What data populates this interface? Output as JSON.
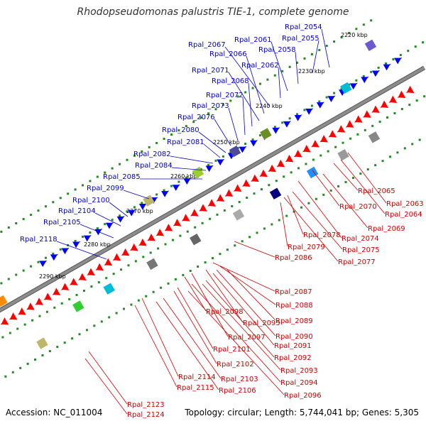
{
  "title": "Rhodopseudomonas palustris TIE-1, complete genome",
  "footer": {
    "accession": "Accession: NC_011004",
    "summary": "Topology: circular; Length: 5,744,041 bp; Genes: 5,305"
  },
  "colors": {
    "backbone": "#8c8c8c",
    "forward_label": "#0000cc",
    "reverse_label": "#cc0000",
    "forward_gene": "#0000ff",
    "reverse_gene": "#ff0000",
    "gc_dots": "#228b22"
  },
  "ticks": [
    {
      "label": "2220 kbp"
    },
    {
      "label": "2230 kbp"
    },
    {
      "label": "2240 kbp"
    },
    {
      "label": "2250 kbp"
    },
    {
      "label": "2260 kbp"
    },
    {
      "label": "2270 kbp"
    },
    {
      "label": "2280 kbp"
    },
    {
      "label": "2290 kbp"
    }
  ],
  "forward_labels": [
    "Rpal_2054",
    "Rpal_2055",
    "Rpal_2058",
    "Rpal_2061",
    "Rpal_2067",
    "Rpal_2066",
    "Rpal_2062",
    "Rpal_2071",
    "Rpal_2068",
    "Rpal_2072",
    "Rpal_2073",
    "Rpal_2076",
    "Rpal_2080",
    "Rpal_2081",
    "Rpal_2082",
    "Rpal_2084",
    "Rpal_2085",
    "Rpal_2099",
    "Rpal_2100",
    "Rpal_2104",
    "Rpal_2105",
    "Rpal_2118"
  ],
  "reverse_labels": [
    "Rpal_2065",
    "Rpal_2063",
    "Rpal_2064",
    "Rpal_2070",
    "Rpal_2069",
    "Rpal_2074",
    "Rpal_2078",
    "Rpal_2075",
    "Rpal_2079",
    "Rpal_2077",
    "Rpal_2086",
    "Rpal_2087",
    "Rpal_2088",
    "Rpal_2098",
    "Rpal_2089",
    "Rpal_2095",
    "Rpal_2090",
    "Rpal_2097",
    "Rpal_2091",
    "Rpal_2101",
    "Rpal_2092",
    "Rpal_2102",
    "Rpal_2093",
    "Rpal_2094",
    "Rpal_2114",
    "Rpal_2103",
    "Rpal_2115",
    "Rpal_2106",
    "Rpal_2096",
    "Rpal_2123",
    "Rpal_2124"
  ]
}
